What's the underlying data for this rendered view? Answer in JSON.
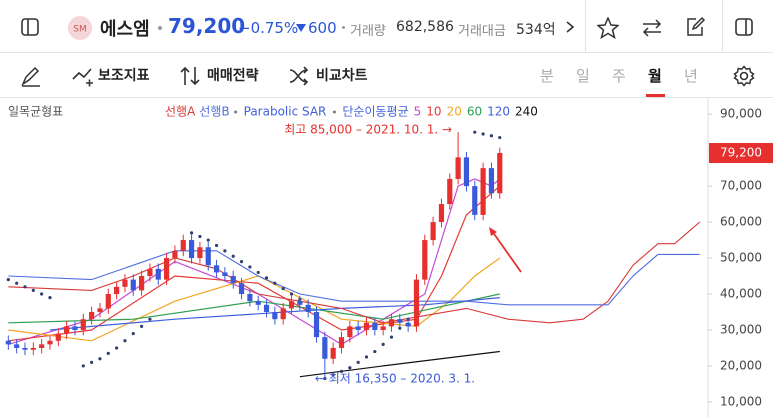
{
  "header": {
    "name": "에스엠",
    "price": "79,200",
    "change_pct": "−0.75%",
    "change": "600",
    "volume_label": "거래량",
    "volume": "682,586",
    "amount_label": "거래대금",
    "amount": "534억"
  },
  "toolbar": {
    "tools": [
      "보조지표",
      "매매전략",
      "비교차트"
    ],
    "periods": [
      "분",
      "일",
      "주",
      "월",
      "년"
    ],
    "selected_period": 3
  },
  "chart_data": {
    "type": "candlestick",
    "indicator_title": "일목균형표",
    "xlim": [
      -1,
      84
    ],
    "ylim": [
      5800,
      94500
    ],
    "yticks": [
      {
        "value": 10000,
        "label": "10,000"
      },
      {
        "value": 20000,
        "label": "20,000"
      },
      {
        "value": 30000,
        "label": "30,000"
      },
      {
        "value": 40000,
        "label": "40,000"
      },
      {
        "value": 50000,
        "label": "50,000"
      },
      {
        "value": 60000,
        "label": "60,000"
      },
      {
        "value": 70000,
        "label": "70,000"
      },
      {
        "value": 80000,
        "label": "80,000"
      },
      {
        "value": 90000,
        "label": "90,000"
      }
    ],
    "current_price_label": "79,200",
    "current_price_color": "#e5302e",
    "up_color": "#e5302e",
    "down_color": "#3a5bd9",
    "open": [
      27000,
      26000,
      25000,
      24500,
      25000,
      26000,
      27000,
      29000,
      31000,
      30000,
      33000,
      35000,
      36000,
      40000,
      42000,
      44000,
      41000,
      45000,
      47000,
      44000,
      50000,
      52000,
      55000,
      50000,
      53000,
      48000,
      46000,
      45000,
      43000,
      40000,
      38000,
      37000,
      35000,
      33000,
      36000,
      38000,
      37000,
      35000,
      28000,
      22000,
      25000,
      28000,
      31000,
      30000,
      32000,
      30000,
      31000,
      33000,
      32000,
      31000,
      44000,
      55000,
      60000,
      65000,
      72000,
      78000,
      70000,
      62000,
      75000,
      68000
    ],
    "high": [
      28500,
      27500,
      26500,
      26500,
      27500,
      28500,
      30500,
      32500,
      32500,
      34500,
      36500,
      37500,
      41500,
      43500,
      45500,
      45500,
      46500,
      48500,
      48500,
      51500,
      53500,
      56500,
      56500,
      54500,
      54500,
      49500,
      47500,
      46500,
      44500,
      41500,
      39500,
      38500,
      36500,
      37500,
      39500,
      39500,
      38500,
      36500,
      29500,
      26500,
      29500,
      32500,
      32500,
      33500,
      33500,
      32500,
      34500,
      34500,
      33500,
      45500,
      56500,
      61500,
      66500,
      73500,
      85000,
      79500,
      71500,
      76500,
      76500,
      80700
    ],
    "low": [
      24500,
      23500,
      23000,
      23000,
      23500,
      24500,
      25500,
      27500,
      28500,
      28500,
      31500,
      33500,
      34500,
      38500,
      40500,
      39500,
      39500,
      43500,
      42500,
      42500,
      48500,
      50500,
      48500,
      48500,
      46500,
      44500,
      43500,
      41500,
      38500,
      36500,
      35500,
      33500,
      31500,
      31500,
      34500,
      35500,
      33500,
      26500,
      16350,
      20500,
      23500,
      26500,
      28500,
      28500,
      28500,
      28500,
      29500,
      30500,
      29500,
      29500,
      42500,
      53500,
      58500,
      63500,
      70500,
      68500,
      60500,
      60500,
      66500,
      66500
    ],
    "close": [
      26000,
      25000,
      24500,
      25000,
      26000,
      27000,
      29000,
      31000,
      30000,
      33000,
      35000,
      36000,
      40000,
      42000,
      44000,
      41000,
      45000,
      47000,
      44000,
      50000,
      52000,
      55000,
      50000,
      53000,
      48000,
      46000,
      45000,
      43000,
      40000,
      38000,
      37000,
      35000,
      33000,
      36000,
      38000,
      37000,
      35000,
      28000,
      22000,
      25000,
      28000,
      31000,
      30000,
      32000,
      30000,
      31000,
      33000,
      32000,
      31000,
      44000,
      55000,
      60000,
      65000,
      72000,
      78000,
      70000,
      62000,
      75000,
      68000,
      79200
    ],
    "ichimoku": [
      {
        "name": "선행A",
        "color": "#d83a3a",
        "x": [
          0,
          10,
          15,
          20,
          25,
          30,
          35,
          40,
          45,
          50,
          55,
          60,
          65,
          69,
          72,
          75,
          78,
          80,
          83
        ],
        "values": [
          42000,
          41000,
          45000,
          50000,
          47000,
          40000,
          38000,
          36000,
          32000,
          34000,
          36000,
          33000,
          32000,
          33000,
          38000,
          48000,
          54000,
          54000,
          60000
        ]
      },
      {
        "name": "선행B",
        "color": "#4f6fe0",
        "x": [
          0,
          10,
          15,
          20,
          25,
          30,
          35,
          40,
          45,
          50,
          55,
          60,
          65,
          69,
          72,
          75,
          78,
          80,
          83
        ],
        "values": [
          45000,
          44000,
          48000,
          52000,
          52000,
          45000,
          40000,
          38000,
          38000,
          38000,
          38000,
          37000,
          37000,
          37000,
          37000,
          45000,
          51000,
          51000,
          51000
        ]
      }
    ],
    "sar": {
      "name": "Parabolic SAR",
      "color": "#2f3f6e",
      "x": [
        0,
        1,
        2,
        3,
        4,
        5,
        9,
        10,
        11,
        12,
        13,
        14,
        15,
        16,
        17,
        22,
        23,
        24,
        25,
        26,
        27,
        28,
        29,
        30,
        31,
        32,
        33,
        34,
        35,
        38,
        39,
        40,
        41,
        42,
        43,
        44,
        45,
        46,
        47,
        48,
        56,
        57,
        58,
        59
      ],
      "values": [
        44000,
        43000,
        42000,
        41000,
        40000,
        39000,
        20000,
        21000,
        22000,
        23500,
        25000,
        27000,
        29000,
        31000,
        33000,
        57000,
        56000,
        55000,
        53500,
        52000,
        50500,
        49000,
        47500,
        46000,
        44500,
        43000,
        41500,
        40000,
        38500,
        16500,
        17500,
        18500,
        19500,
        21000,
        22500,
        24000,
        26000,
        28000,
        30500,
        33000,
        85000,
        84500,
        84000,
        83500
      ]
    },
    "moving_averages": {
      "name": "단순이동평균",
      "series": [
        {
          "name": "5",
          "color": "#c64bd6",
          "x": [
            0,
            10,
            20,
            30,
            40,
            50,
            52,
            54,
            56,
            58,
            59
          ],
          "values": [
            26000,
            33000,
            49000,
            40000,
            26000,
            40000,
            55000,
            70000,
            72000,
            70000,
            72000
          ]
        },
        {
          "name": "10",
          "color": "#e53935",
          "x": [
            0,
            10,
            20,
            30,
            40,
            49,
            52,
            55,
            59
          ],
          "values": [
            27000,
            30000,
            45000,
            43000,
            30000,
            33000,
            45000,
            62000,
            70000
          ]
        },
        {
          "name": "20",
          "color": "#f2a623",
          "x": [
            0,
            10,
            20,
            30,
            40,
            49,
            53,
            56,
            59
          ],
          "values": [
            30000,
            27000,
            38000,
            45000,
            33000,
            31000,
            38000,
            45000,
            50000
          ]
        },
        {
          "name": "60",
          "color": "#2e9e4f",
          "x": [
            0,
            15,
            30,
            45,
            55,
            59
          ],
          "values": [
            32000,
            33000,
            38000,
            33000,
            38000,
            40000
          ]
        },
        {
          "name": "120",
          "color": "#3f5fe0",
          "x": [
            5,
            20,
            40,
            50,
            59
          ],
          "values": [
            30000,
            33000,
            36000,
            37000,
            39000
          ]
        },
        {
          "name": "240",
          "color": "#111111",
          "x": [
            35,
            45,
            59
          ],
          "values": [
            17000,
            20000,
            24000
          ]
        }
      ]
    },
    "annotations": {
      "high": {
        "text": "최고 85,000 – 2021. 10. 1. →",
        "color": "#e5302e"
      },
      "low": {
        "text": "← 최저 16,350 – 2020. 3. 1.",
        "color": "#3a5bd9"
      }
    }
  }
}
